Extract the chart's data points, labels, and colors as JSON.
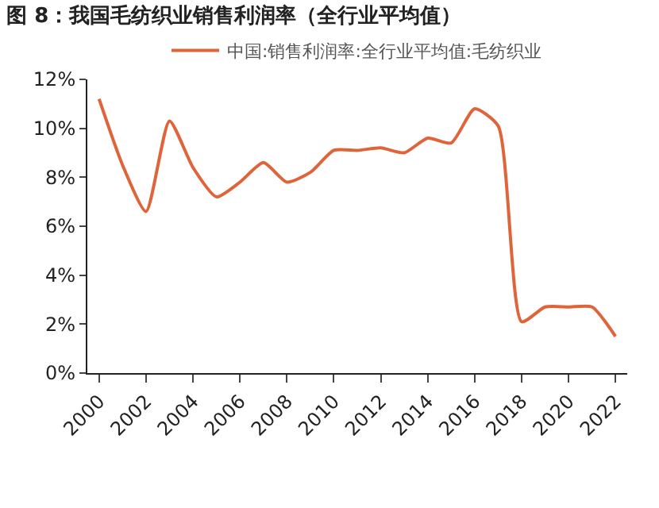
{
  "chart_data": {
    "type": "line",
    "title": "图 8：我国毛纺织业销售利润率（全行业平均值）",
    "x": [
      2000,
      2001,
      2002,
      2003,
      2004,
      2005,
      2006,
      2007,
      2008,
      2009,
      2010,
      2011,
      2012,
      2013,
      2014,
      2015,
      2016,
      2017,
      2018,
      2019,
      2020,
      2021,
      2022
    ],
    "series": [
      {
        "name": "中国:销售利润率:全行业平均值:毛纺织业",
        "color": "#e0643a",
        "values": [
          11.2,
          8.5,
          6.6,
          10.3,
          8.4,
          7.2,
          7.8,
          8.6,
          7.8,
          8.2,
          9.1,
          9.1,
          9.2,
          9.0,
          9.6,
          9.4,
          10.8,
          10.1,
          2.1,
          2.7,
          2.7,
          2.7,
          1.5
        ]
      }
    ],
    "xlim": [
      1999.5,
      2022.5
    ],
    "xticks": [
      2000,
      2002,
      2004,
      2006,
      2008,
      2010,
      2012,
      2014,
      2016,
      2018,
      2020,
      2022
    ],
    "ylim": [
      0,
      12
    ],
    "yticks": [
      {
        "value": 0,
        "label": "0%"
      },
      {
        "value": 2,
        "label": "2%"
      },
      {
        "value": 4,
        "label": "4%"
      },
      {
        "value": 6,
        "label": "6%"
      },
      {
        "value": 8,
        "label": "8%"
      },
      {
        "value": 10,
        "label": "10%"
      },
      {
        "value": 12,
        "label": "12%"
      }
    ],
    "legend": "top",
    "marker": "none",
    "line_style": "solid"
  }
}
